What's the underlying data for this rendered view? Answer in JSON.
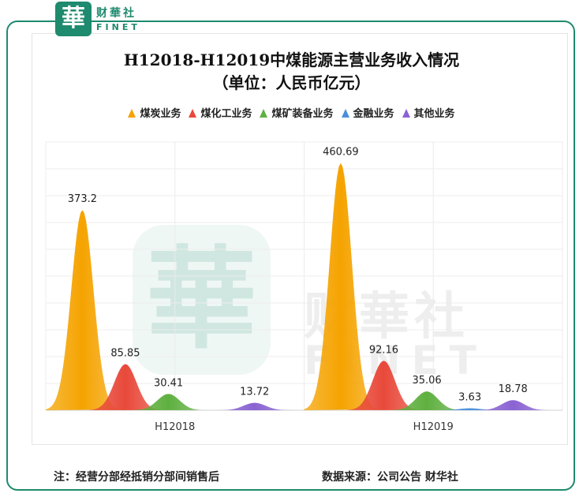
{
  "brand": {
    "logo_char": "華",
    "name_cn": "财華社",
    "name_en": "FINET",
    "accent_color": "#1e8a6e"
  },
  "chart_data": {
    "type": "area",
    "title": "H12018-H12019中煤能源主营业务收入情况",
    "subtitle": "（单位：人民币亿元）",
    "categories": [
      "H12018",
      "H12019"
    ],
    "series": [
      {
        "name": "煤炭业务",
        "color": "#f5a300",
        "values": [
          373.2,
          460.69
        ],
        "labels": [
          "373.2",
          "460.69"
        ]
      },
      {
        "name": "煤化工业务",
        "color": "#e8493a",
        "values": [
          85.85,
          92.16
        ],
        "labels": [
          "85.85",
          "92.16"
        ]
      },
      {
        "name": "煤矿装备业务",
        "color": "#5fb040",
        "values": [
          30.41,
          35.06
        ],
        "labels": [
          "30.41",
          "35.06"
        ]
      },
      {
        "name": "金融业务",
        "color": "#4a90d9",
        "values": [
          0,
          3.63
        ],
        "labels": [
          "",
          "3.63"
        ]
      },
      {
        "name": "其他业务",
        "color": "#8a63d2",
        "values": [
          13.72,
          18.78
        ],
        "labels": [
          "13.72",
          "18.78"
        ]
      }
    ],
    "ylim": [
      0,
      500
    ],
    "grid": true,
    "legend_position": "top-center"
  },
  "footer": {
    "note": "注：经营分部经抵销分部间销售后",
    "source": "数据来源：公司公告  财华社"
  }
}
